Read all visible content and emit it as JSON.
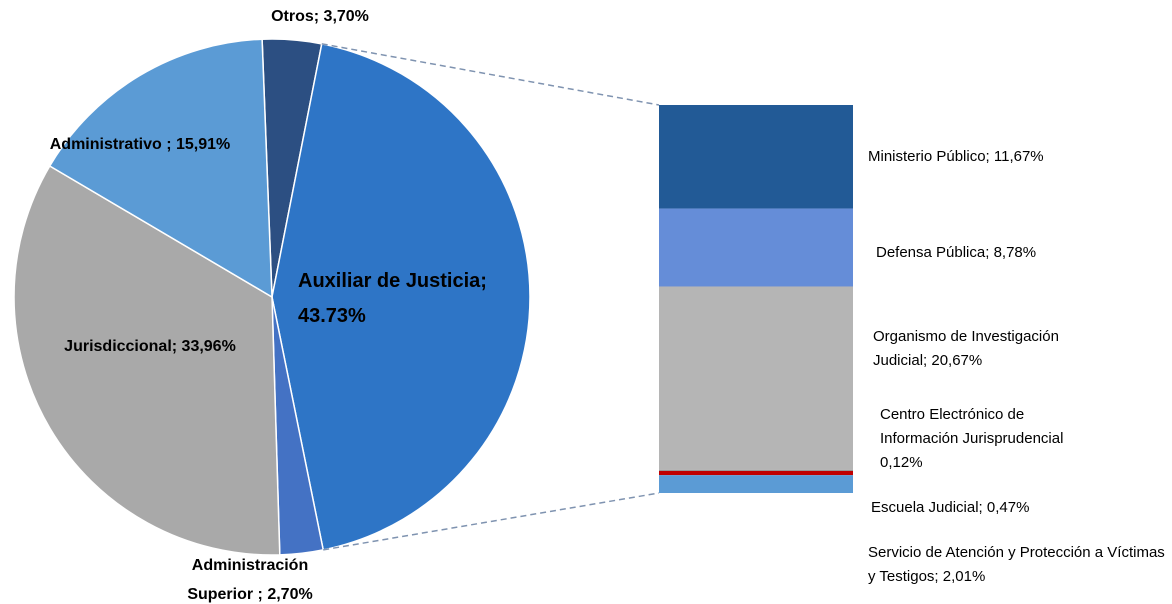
{
  "chart_data": [
    {
      "type": "pie",
      "labels": [
        "Otros; 3,70%",
        "Auxiliar de Justicia; 43.73%",
        "Administración Superior ; 2,70%",
        "Jurisdiccional; 33,96%",
        "Administrativo ; 15,91%"
      ],
      "values": [
        3.7,
        43.73,
        2.7,
        33.96,
        15.91
      ],
      "colors": [
        "#2c4f82",
        "#2e75c6",
        "#4472c4",
        "#a9a9a9",
        "#5b9bd5"
      ]
    },
    {
      "type": "stacked-bar",
      "labels": [
        "Ministerio Público; 11,67%",
        "Defensa Pública; 8,78%",
        "Organismo de Investigación Judicial; 20,67%",
        "Centro Electrónico de Información Jurisprudencial 0,12%",
        "Escuela Judicial; 0,47%",
        "Servicio de Atención y Protección a Víctimas y Testigos; 2,01%"
      ],
      "values": [
        11.67,
        8.78,
        20.67,
        0.12,
        0.47,
        2.01
      ],
      "colors": [
        "#225a96",
        "#658dd8",
        "#b5b5b5",
        "#9a9a9a",
        "#c00000",
        "#5b9bd5"
      ]
    }
  ]
}
